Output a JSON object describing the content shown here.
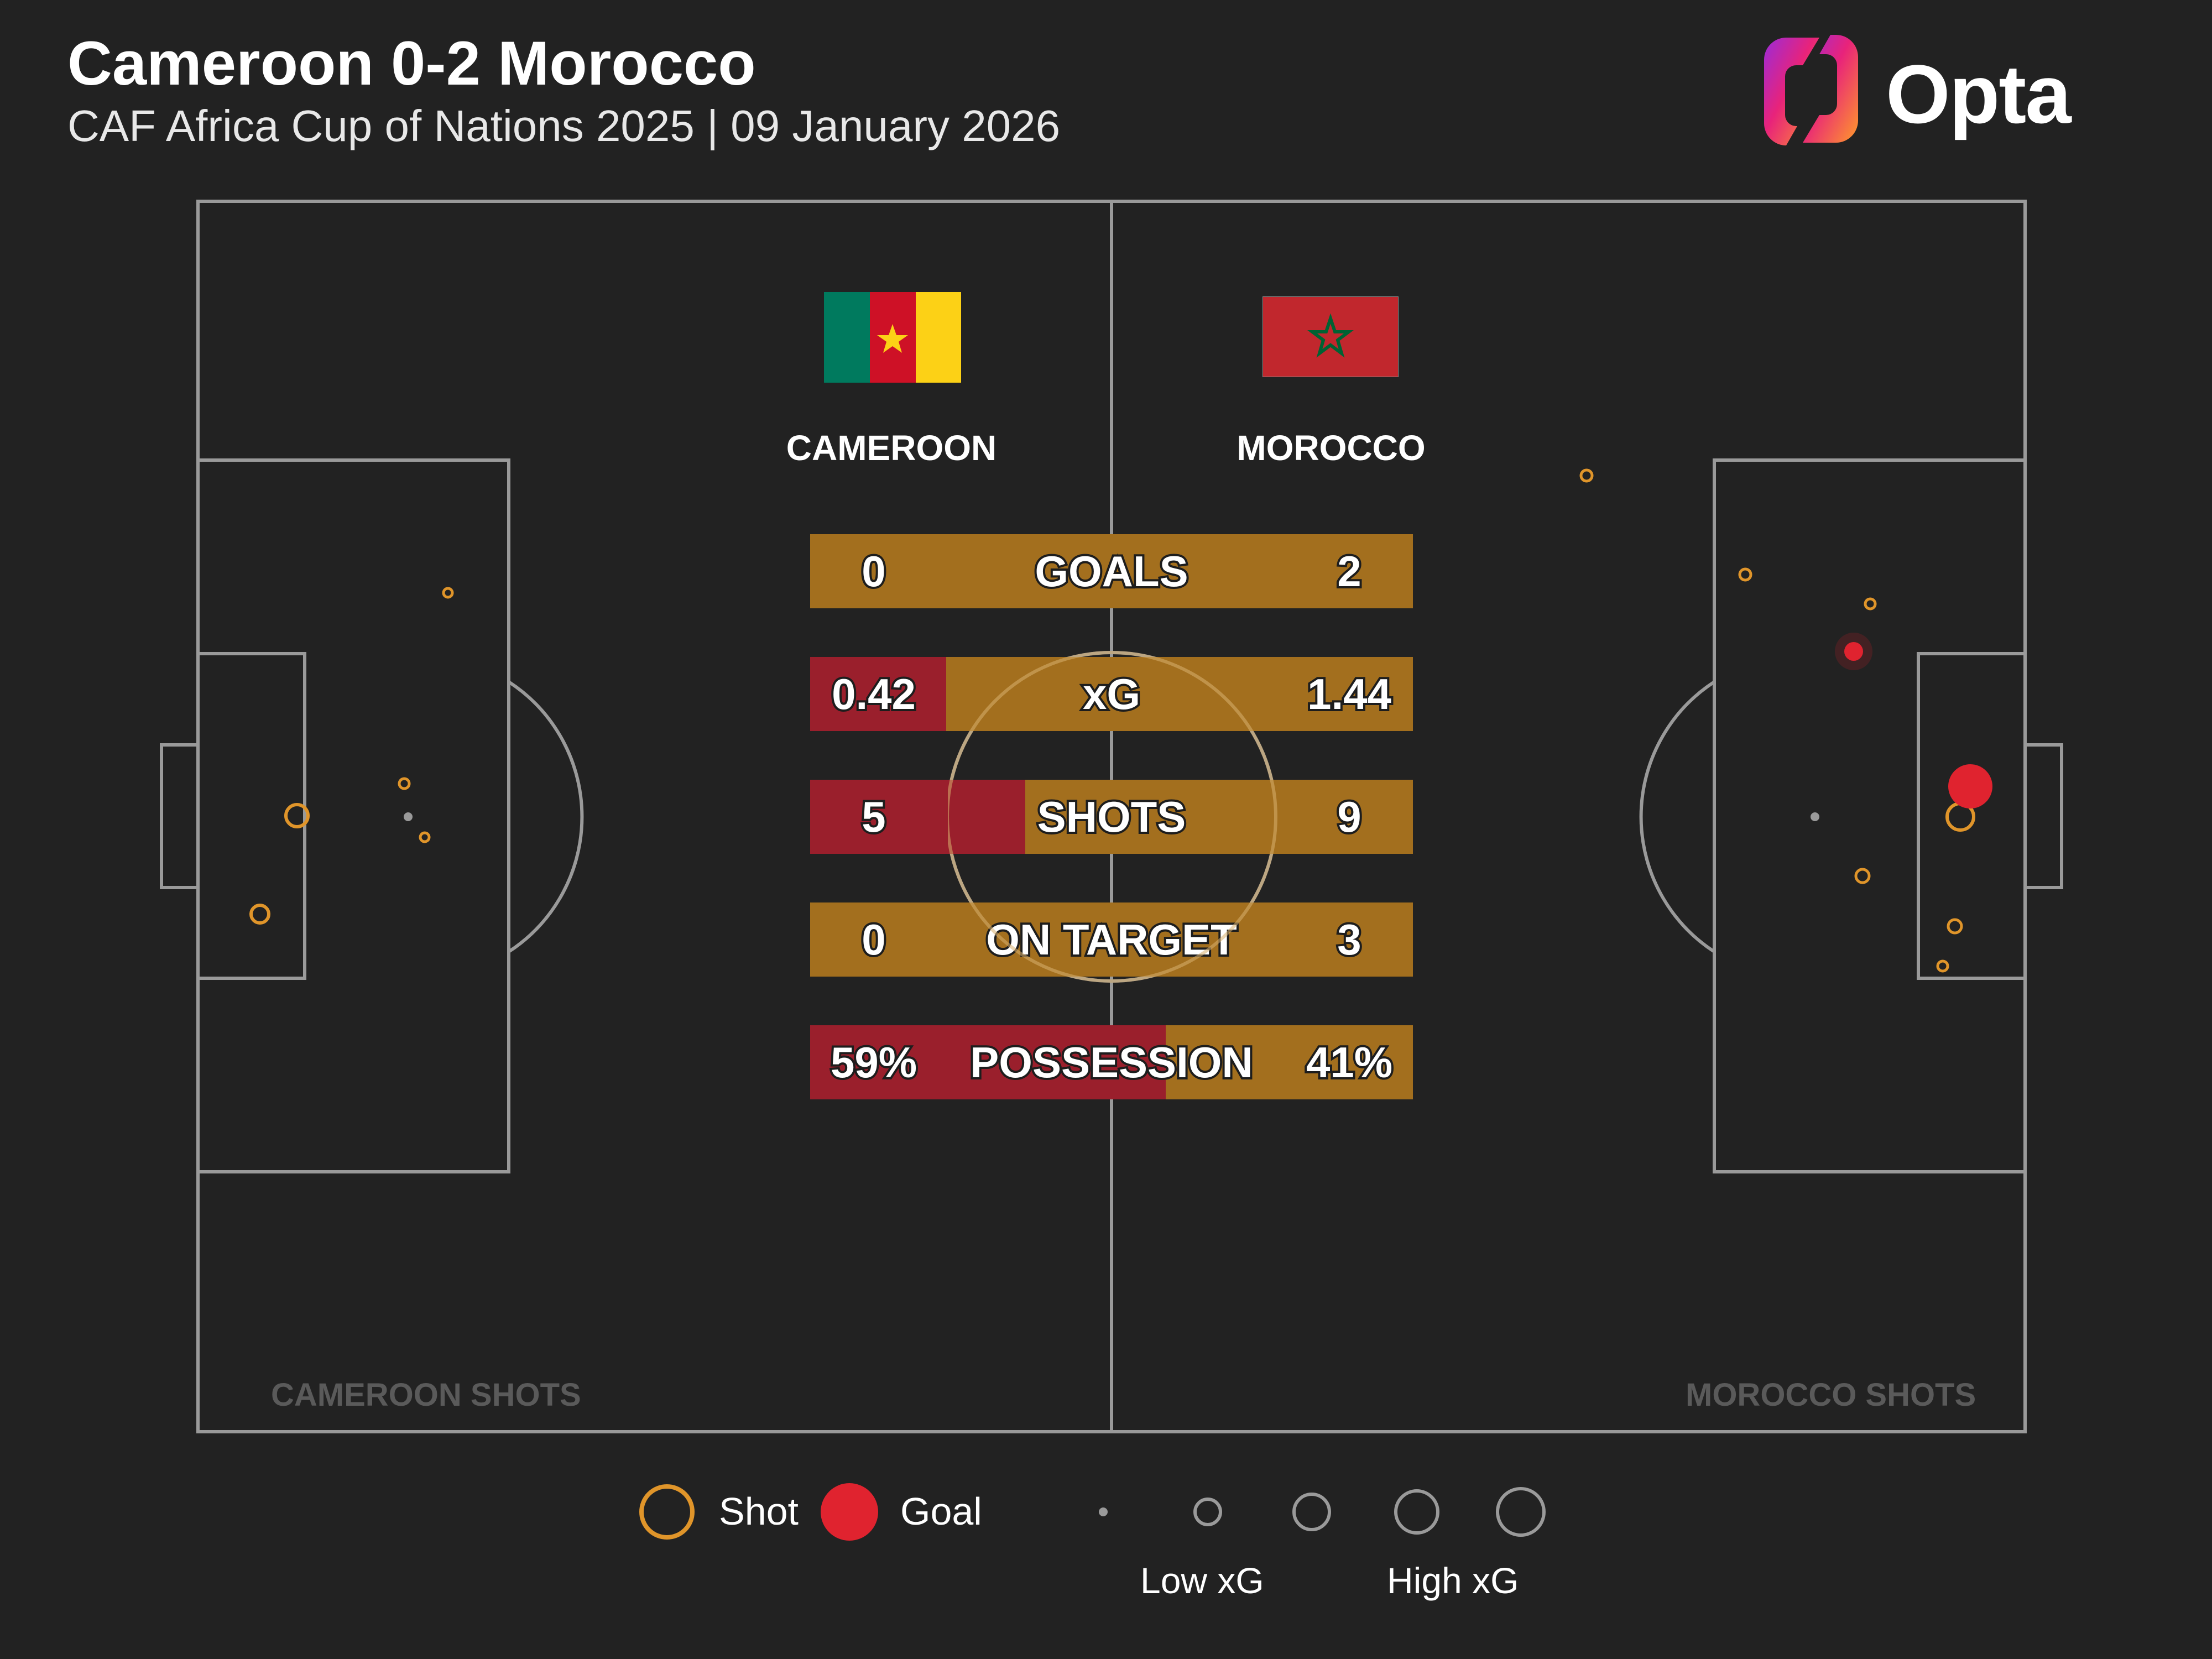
{
  "header": {
    "title": "Cameroon 0-2 Morocco",
    "subtitle": "CAF Africa Cup of Nations 2025 | 09 January 2026",
    "brand": "Opta"
  },
  "teams": {
    "home": {
      "name": "CAMEROON",
      "shots_label": "CAMEROON SHOTS",
      "flag": "cameroon-flag"
    },
    "away": {
      "name": "MOROCCO",
      "shots_label": "MOROCCO SHOTS",
      "flag": "morocco-flag"
    }
  },
  "stats": [
    {
      "label": "GOALS",
      "home": "0",
      "away": "2",
      "home_share": 0
    },
    {
      "label": "xG",
      "home": "0.42",
      "away": "1.44",
      "home_share": 0.226
    },
    {
      "label": "SHOTS",
      "home": "5",
      "away": "9",
      "home_share": 0.357
    },
    {
      "label": "ON TARGET",
      "home": "0",
      "away": "3",
      "home_share": 0
    },
    {
      "label": "POSSESSION",
      "home": "59%",
      "away": "41%",
      "home_share": 0.59
    }
  ],
  "legend": {
    "shot": "Shot",
    "goal": "Goal",
    "low_xg": "Low xG",
    "high_xg": "High xG"
  },
  "colors": {
    "background": "#222222",
    "shot": "#e0952a",
    "goal": "#e0232f",
    "bar": "#a36f1e",
    "bar_highlight": "#9a1f2c",
    "pitch_lines": "#9a9a9a"
  }
}
